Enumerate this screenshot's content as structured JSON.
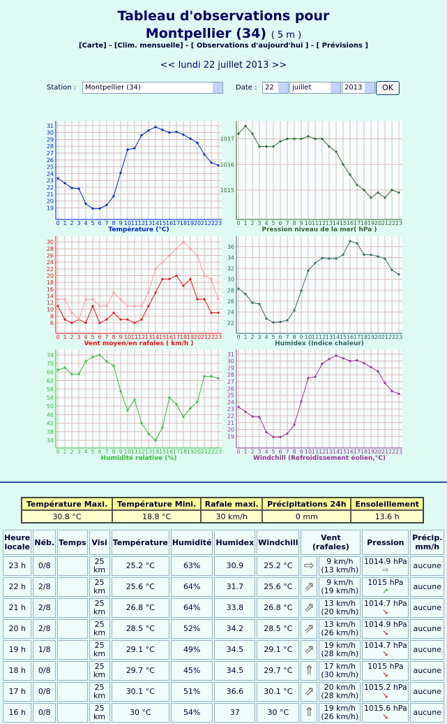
{
  "header": {
    "title_line1": "Tableau d'observations pour",
    "title_line2": "Montpellier (34)",
    "altitude": "( 5 m )",
    "links": "[Carte] - [Clim. mensuelle] - [ Observations d'aujourd'hui ] - [ Prévisions ]",
    "prev": "<<",
    "date": "lundi 22 juillet 2013",
    "next": ">>"
  },
  "form": {
    "station_label": "Station :",
    "station": "Montpellier (34)",
    "date_label": "Date :",
    "day": "22",
    "month": "juillet",
    "year": "2013",
    "button": "OK"
  },
  "chart_data": [
    {
      "type": "line",
      "title": "Température (°C)",
      "color": "#0022cc",
      "categories": [
        "0",
        "1",
        "2",
        "3",
        "4",
        "5",
        "6",
        "7",
        "8",
        "9",
        "10",
        "11",
        "12",
        "13",
        "14",
        "15",
        "16",
        "17",
        "18",
        "19",
        "20",
        "21",
        "22",
        "23"
      ],
      "values": [
        23.3,
        22.6,
        21.9,
        21.8,
        19.6,
        18.9,
        18.9,
        19.4,
        20.7,
        24.1,
        27.5,
        27.7,
        29.6,
        30.3,
        30.8,
        30.4,
        30.0,
        30.1,
        29.7,
        29.1,
        28.5,
        26.8,
        25.6,
        25.2
      ],
      "ylim": [
        17.3,
        31.7
      ],
      "yticks": [
        19,
        20,
        21,
        22,
        23,
        24,
        25,
        26,
        27,
        28,
        29,
        30,
        31
      ],
      "grid": true
    },
    {
      "type": "line",
      "title": "Pression niveau de la mer( hPa )",
      "color": "#336633",
      "categories": [
        "0",
        "1",
        "2",
        "3",
        "4",
        "5",
        "6",
        "7",
        "8",
        "9",
        "10",
        "11",
        "12",
        "13",
        "14",
        "15",
        "16",
        "17",
        "18",
        "19",
        "20",
        "21",
        "22",
        "23"
      ],
      "values": [
        1017.2,
        1017.5,
        1017.2,
        1016.7,
        1016.7,
        1016.7,
        1016.9,
        1017.0,
        1017.0,
        1017.0,
        1017.1,
        1017.0,
        1017.0,
        1016.7,
        1016.5,
        1016.0,
        1015.6,
        1015.2,
        1015.0,
        1014.7,
        1014.9,
        1014.7,
        1015.0,
        1014.9
      ],
      "ylim": [
        1013.85,
        1017.7
      ],
      "yticks": [
        1015,
        1016,
        1017
      ],
      "grid": true
    },
    {
      "type": "line",
      "title": "Vent moyen/en rafales ( km/h )",
      "categories": [
        "0",
        "1",
        "2",
        "3",
        "4",
        "5",
        "6",
        "7",
        "8",
        "9",
        "10",
        "11",
        "12",
        "13",
        "14",
        "15",
        "16",
        "17",
        "18",
        "19",
        "20",
        "21",
        "22",
        "23"
      ],
      "series": [
        {
          "color": "#ee1111",
          "values": [
            11,
            7,
            6,
            7,
            6,
            11,
            6,
            7,
            9,
            7,
            7,
            6,
            7,
            11,
            15,
            19,
            19,
            20,
            17,
            19,
            13,
            13,
            9,
            9
          ]
        },
        {
          "color": "#ff9999",
          "values": [
            13,
            13,
            9,
            7,
            13,
            13,
            11,
            11,
            15,
            13,
            11,
            11,
            11,
            15,
            22,
            24,
            26,
            28,
            30,
            28,
            26,
            20,
            19,
            13
          ]
        }
      ],
      "ylim": [
        2.9,
        31.7
      ],
      "yticks": [
        6,
        8,
        10,
        12,
        14,
        16,
        18,
        20,
        22,
        24,
        26,
        28,
        30
      ],
      "grid": true
    },
    {
      "type": "line",
      "title": "Humidex (Indice chaleur)",
      "color": "#336666",
      "categories": [
        "0",
        "1",
        "2",
        "3",
        "4",
        "5",
        "6",
        "7",
        "8",
        "9",
        "10",
        "11",
        "12",
        "13",
        "14",
        "15",
        "16",
        "17",
        "18",
        "19",
        "20",
        "21",
        "22",
        "23"
      ],
      "values": [
        28.3,
        27.3,
        25.7,
        25.5,
        22.8,
        22.1,
        22.2,
        22.5,
        24.3,
        27.9,
        31.6,
        33.0,
        33.9,
        33.8,
        33.8,
        34.5,
        37,
        36.6,
        34.5,
        34.5,
        34.2,
        33.8,
        31.7,
        30.9
      ],
      "ylim": [
        20.1,
        37.9
      ],
      "yticks": [
        22,
        24,
        26,
        28,
        30,
        32,
        34,
        36
      ],
      "grid": true
    },
    {
      "type": "line",
      "title": "Humidité relative (%)",
      "color": "#33bb33",
      "categories": [
        "0",
        "1",
        "2",
        "3",
        "4",
        "5",
        "6",
        "7",
        "8",
        "9",
        "10",
        "11",
        "12",
        "13",
        "14",
        "15",
        "16",
        "17",
        "18",
        "19",
        "20",
        "21",
        "22",
        "23"
      ],
      "values": [
        67,
        68,
        65,
        65,
        71,
        73,
        74,
        71,
        69,
        57,
        48,
        53,
        42,
        37,
        34,
        40,
        54,
        51,
        45,
        49,
        52,
        64,
        64,
        63
      ],
      "ylim": [
        30.4,
        76.6
      ],
      "yticks": [
        34,
        38,
        42,
        46,
        50,
        54,
        58,
        62,
        66,
        70,
        74
      ],
      "grid": true
    },
    {
      "type": "line",
      "title": "Windchill (Refroidissement éolien,°C)",
      "color": "#993399",
      "categories": [
        "0",
        "1",
        "2",
        "3",
        "4",
        "5",
        "6",
        "7",
        "8",
        "9",
        "10",
        "11",
        "12",
        "13",
        "14",
        "15",
        "16",
        "17",
        "18",
        "19",
        "20",
        "21",
        "22",
        "23"
      ],
      "values": [
        23.3,
        22.6,
        21.9,
        21.8,
        19.6,
        18.9,
        18.9,
        19.4,
        20.7,
        24.1,
        27.5,
        27.7,
        29.6,
        30.3,
        30.8,
        30.4,
        30.0,
        30.1,
        29.7,
        29.1,
        28.5,
        26.8,
        25.6,
        25.2
      ],
      "ylim": [
        17.3,
        31.7
      ],
      "yticks": [
        19,
        20,
        21,
        22,
        23,
        24,
        25,
        26,
        27,
        28,
        29,
        30,
        31
      ],
      "grid": true
    }
  ],
  "summary": {
    "headers": [
      "Température Maxi.",
      "Température Mini.",
      "Rafale maxi.",
      "Précipitations 24h",
      "Ensoleillement"
    ],
    "values": [
      "30.8 °C",
      "18.8 °C",
      "30 km/h",
      "0 mm",
      "13.6 h"
    ]
  },
  "observations": {
    "headers": {
      "hour": "Heure locale",
      "neb": "Néb.",
      "temps": "Temps",
      "visi": "Visi",
      "temperature": "Température",
      "humidity": "Humidité",
      "humidex": "Humidex",
      "windchill": "Windchill",
      "wind": "Vent (rafales)",
      "pressure": "Pression",
      "precip": "Précip. mm/h"
    },
    "rows": [
      {
        "hour": "23 h",
        "neb": "0/8",
        "visi": "25 km",
        "temperature": "25.2 °C",
        "humidity": "63%",
        "humidex": "30.9",
        "windchill": "25.2 °C",
        "wind_icon": "⇨",
        "wind": "9 km/h (13 km/h)",
        "pressure": "1014.9 hPa",
        "trend": "⇨",
        "trend_color": "#888888",
        "precip": "aucune"
      },
      {
        "hour": "22 h",
        "neb": "2/8",
        "visi": "25 km",
        "temperature": "25.6 °C",
        "humidity": "64%",
        "humidex": "31.7",
        "windchill": "25.6 °C",
        "wind_icon": "⇗",
        "wind": "9 km/h (19 km/h)",
        "pressure": "1015 hPa",
        "trend": "➚",
        "trend_color": "#22aa22",
        "precip": "aucune"
      },
      {
        "hour": "21 h",
        "neb": "2/8",
        "visi": "25 km",
        "temperature": "26.8 °C",
        "humidity": "64%",
        "humidex": "33.8",
        "windchill": "26.8 °C",
        "wind_icon": "⇗",
        "wind": "13 km/h (20 km/h)",
        "pressure": "1014.7 hPa",
        "trend": "➘",
        "trend_color": "#dd1111",
        "precip": "aucune"
      },
      {
        "hour": "20 h",
        "neb": "2/8",
        "visi": "25 km",
        "temperature": "28.5 °C",
        "humidity": "52%",
        "humidex": "34.2",
        "windchill": "28.5 °C",
        "wind_icon": "⇗",
        "wind": "13 km/h (26 km/h)",
        "pressure": "1014.9 hPa",
        "trend": "➘",
        "trend_color": "#dd1111",
        "precip": "aucune"
      },
      {
        "hour": "19 h",
        "neb": "1/8",
        "visi": "25 km",
        "temperature": "29.1 °C",
        "humidity": "49%",
        "humidex": "34.5",
        "windchill": "29.1 °C",
        "wind_icon": "⇗",
        "wind": "19 km/h (28 km/h)",
        "pressure": "1014.7 hPa",
        "trend": "➘",
        "trend_color": "#dd1111",
        "precip": "aucune"
      },
      {
        "hour": "18 h",
        "neb": "0/8",
        "visi": "25 km",
        "temperature": "29.7 °C",
        "humidity": "45%",
        "humidex": "34.5",
        "windchill": "29.7 °C",
        "wind_icon": "⇑",
        "wind": "17 km/h (30 km/h)",
        "pressure": "1015 hPa",
        "trend": "➘",
        "trend_color": "#dd1111",
        "precip": "aucune"
      },
      {
        "hour": "17 h",
        "neb": "0/8",
        "visi": "25 km",
        "temperature": "30.1 °C",
        "humidity": "51%",
        "humidex": "36.6",
        "windchill": "30.1 °C",
        "wind_icon": "⇗",
        "wind": "20 km/h (28 km/h)",
        "pressure": "1015.2 hPa",
        "trend": "➘",
        "trend_color": "#dd1111",
        "precip": "aucune"
      },
      {
        "hour": "16 h",
        "neb": "0/8",
        "visi": "25 km",
        "temperature": "30 °C",
        "humidity": "54%",
        "humidex": "37",
        "windchill": "30 °C",
        "wind_icon": "⇑",
        "wind": "19 km/h (26 km/h)",
        "pressure": "1015.6 hPa",
        "trend": "➘",
        "trend_color": "#dd1111",
        "precip": "aucune"
      }
    ]
  }
}
